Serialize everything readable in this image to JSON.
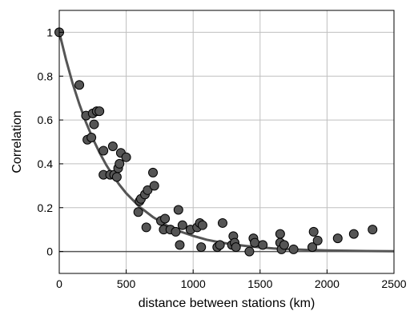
{
  "chart_data": {
    "type": "scatter",
    "title": "",
    "xlabel": "distance between stations (km)",
    "ylabel": "Correlation",
    "xlim": [
      0,
      2500
    ],
    "ylim": [
      -0.1,
      1.1
    ],
    "xticks": [
      0,
      500,
      1000,
      1500,
      2000,
      2500
    ],
    "yticks": [
      0,
      0.2,
      0.4,
      0.6,
      0.8,
      1
    ],
    "grid": true,
    "legend": "none",
    "colors": {
      "points": "#555555",
      "curve": "#555555",
      "zero_line": "#555555",
      "grid": "#bfbfbf"
    },
    "series": [
      {
        "kind": "scatter",
        "x": [
          0,
          150,
          200,
          210,
          240,
          250,
          260,
          280,
          300,
          330,
          330,
          380,
          400,
          410,
          430,
          440,
          450,
          460,
          500,
          590,
          600,
          610,
          640,
          650,
          660,
          700,
          710,
          760,
          780,
          790,
          830,
          870,
          890,
          900,
          920,
          980,
          1030,
          1050,
          1060,
          1070,
          1180,
          1200,
          1220,
          1290,
          1300,
          1310,
          1320,
          1420,
          1450,
          1460,
          1520,
          1650,
          1650,
          1660,
          1680,
          1750,
          1890,
          1900,
          1930,
          2080,
          2200,
          2340
        ],
        "y": [
          1.0,
          0.76,
          0.62,
          0.51,
          0.52,
          0.63,
          0.58,
          0.64,
          0.64,
          0.46,
          0.35,
          0.35,
          0.48,
          0.35,
          0.34,
          0.38,
          0.4,
          0.45,
          0.43,
          0.18,
          0.23,
          0.24,
          0.26,
          0.11,
          0.28,
          0.36,
          0.3,
          0.14,
          0.1,
          0.15,
          0.1,
          0.09,
          0.19,
          0.03,
          0.12,
          0.1,
          0.11,
          0.13,
          0.02,
          0.12,
          0.02,
          0.03,
          0.13,
          0.03,
          0.07,
          0.04,
          0.02,
          0.0,
          0.06,
          0.04,
          0.03,
          0.08,
          0.04,
          0.01,
          0.03,
          0.01,
          0.02,
          0.09,
          0.05,
          0.06,
          0.08,
          0.1
        ]
      },
      {
        "kind": "line",
        "x": [
          0,
          50,
          100,
          150,
          200,
          250,
          300,
          350,
          400,
          450,
          500,
          600,
          700,
          800,
          900,
          1000,
          1100,
          1200,
          1300,
          1400,
          1500,
          1600,
          1700,
          1800,
          1900,
          2000,
          2100,
          2200,
          2300,
          2400,
          2500
        ],
        "y": [
          1.0,
          0.876,
          0.767,
          0.672,
          0.589,
          0.516,
          0.452,
          0.396,
          0.347,
          0.304,
          0.266,
          0.204,
          0.157,
          0.12,
          0.092,
          0.071,
          0.054,
          0.042,
          0.032,
          0.025,
          0.019,
          0.014,
          0.011,
          0.0085,
          0.0065,
          0.005,
          0.0038,
          0.0029,
          0.0023,
          0.0017,
          0.0013
        ]
      }
    ]
  }
}
